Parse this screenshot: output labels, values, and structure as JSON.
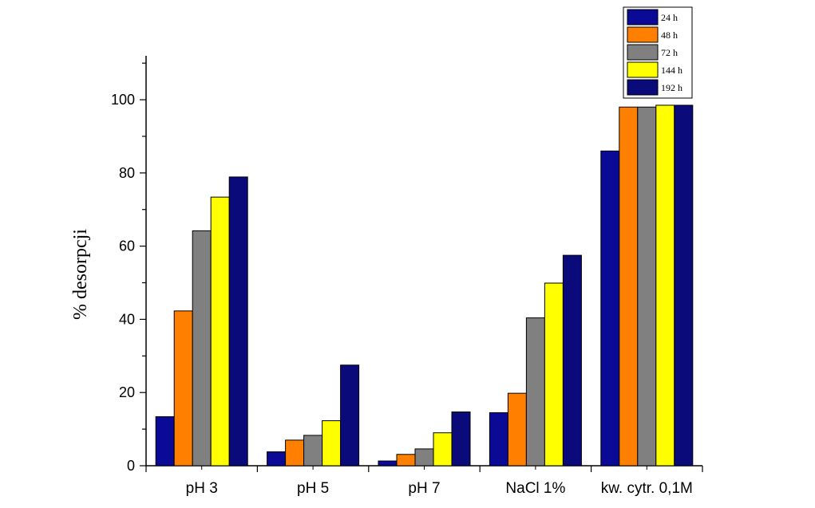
{
  "chart_data": {
    "type": "bar",
    "title": "",
    "xlabel": "",
    "ylabel": "% desorpcji",
    "ylim": [
      0,
      112
    ],
    "yticks": [
      0,
      20,
      40,
      60,
      80,
      100
    ],
    "categories": [
      "pH 3",
      "pH 5",
      "pH 7",
      "NaCl 1%",
      "kw. cytr. 0,1M"
    ],
    "series": [
      {
        "name": "24 h",
        "color": "#0A0A96",
        "values": [
          13.4,
          3.8,
          1.3,
          14.5,
          86.0
        ]
      },
      {
        "name": "48 h",
        "color": "#FF8000",
        "values": [
          42.3,
          7.0,
          3.1,
          19.8,
          98.0
        ]
      },
      {
        "name": "72 h",
        "color": "#808080",
        "values": [
          64.2,
          8.3,
          4.6,
          40.4,
          98.0
        ]
      },
      {
        "name": "144 h",
        "color": "#FFFF00",
        "values": [
          73.4,
          12.3,
          9.0,
          49.9,
          98.5
        ]
      },
      {
        "name": "192 h",
        "color": "#0A0A7A",
        "values": [
          78.9,
          27.5,
          14.7,
          57.5,
          98.5
        ]
      }
    ],
    "legend_position": "top-right",
    "grid": false
  }
}
